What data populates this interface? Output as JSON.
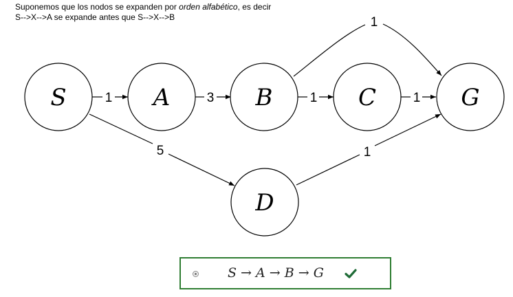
{
  "note": {
    "line1_prefix": "Suponemos que los nodos se expanden por ",
    "line1_emph": "orden alfabético",
    "line1_suffix": ", es decir",
    "line2": "S-->X-->A se expande antes que  S-->X-->B"
  },
  "nodes": [
    {
      "id": "S",
      "label": "S"
    },
    {
      "id": "A",
      "label": "A"
    },
    {
      "id": "B",
      "label": "B"
    },
    {
      "id": "C",
      "label": "C"
    },
    {
      "id": "G",
      "label": "G"
    },
    {
      "id": "D",
      "label": "D"
    }
  ],
  "edges": [
    {
      "from": "S",
      "to": "A",
      "weight": "1"
    },
    {
      "from": "A",
      "to": "B",
      "weight": "3"
    },
    {
      "from": "B",
      "to": "C",
      "weight": "1"
    },
    {
      "from": "C",
      "to": "G",
      "weight": "1"
    },
    {
      "from": "B",
      "to": "G",
      "weight": "1"
    },
    {
      "from": "S",
      "to": "D",
      "weight": "5"
    },
    {
      "from": "D",
      "to": "G",
      "weight": "1"
    }
  ],
  "answer": {
    "text": "S → A → B → G",
    "status": "correct",
    "icon": "check-icon",
    "border_color": "#2e7d32",
    "check_color": "#1e6b36"
  }
}
